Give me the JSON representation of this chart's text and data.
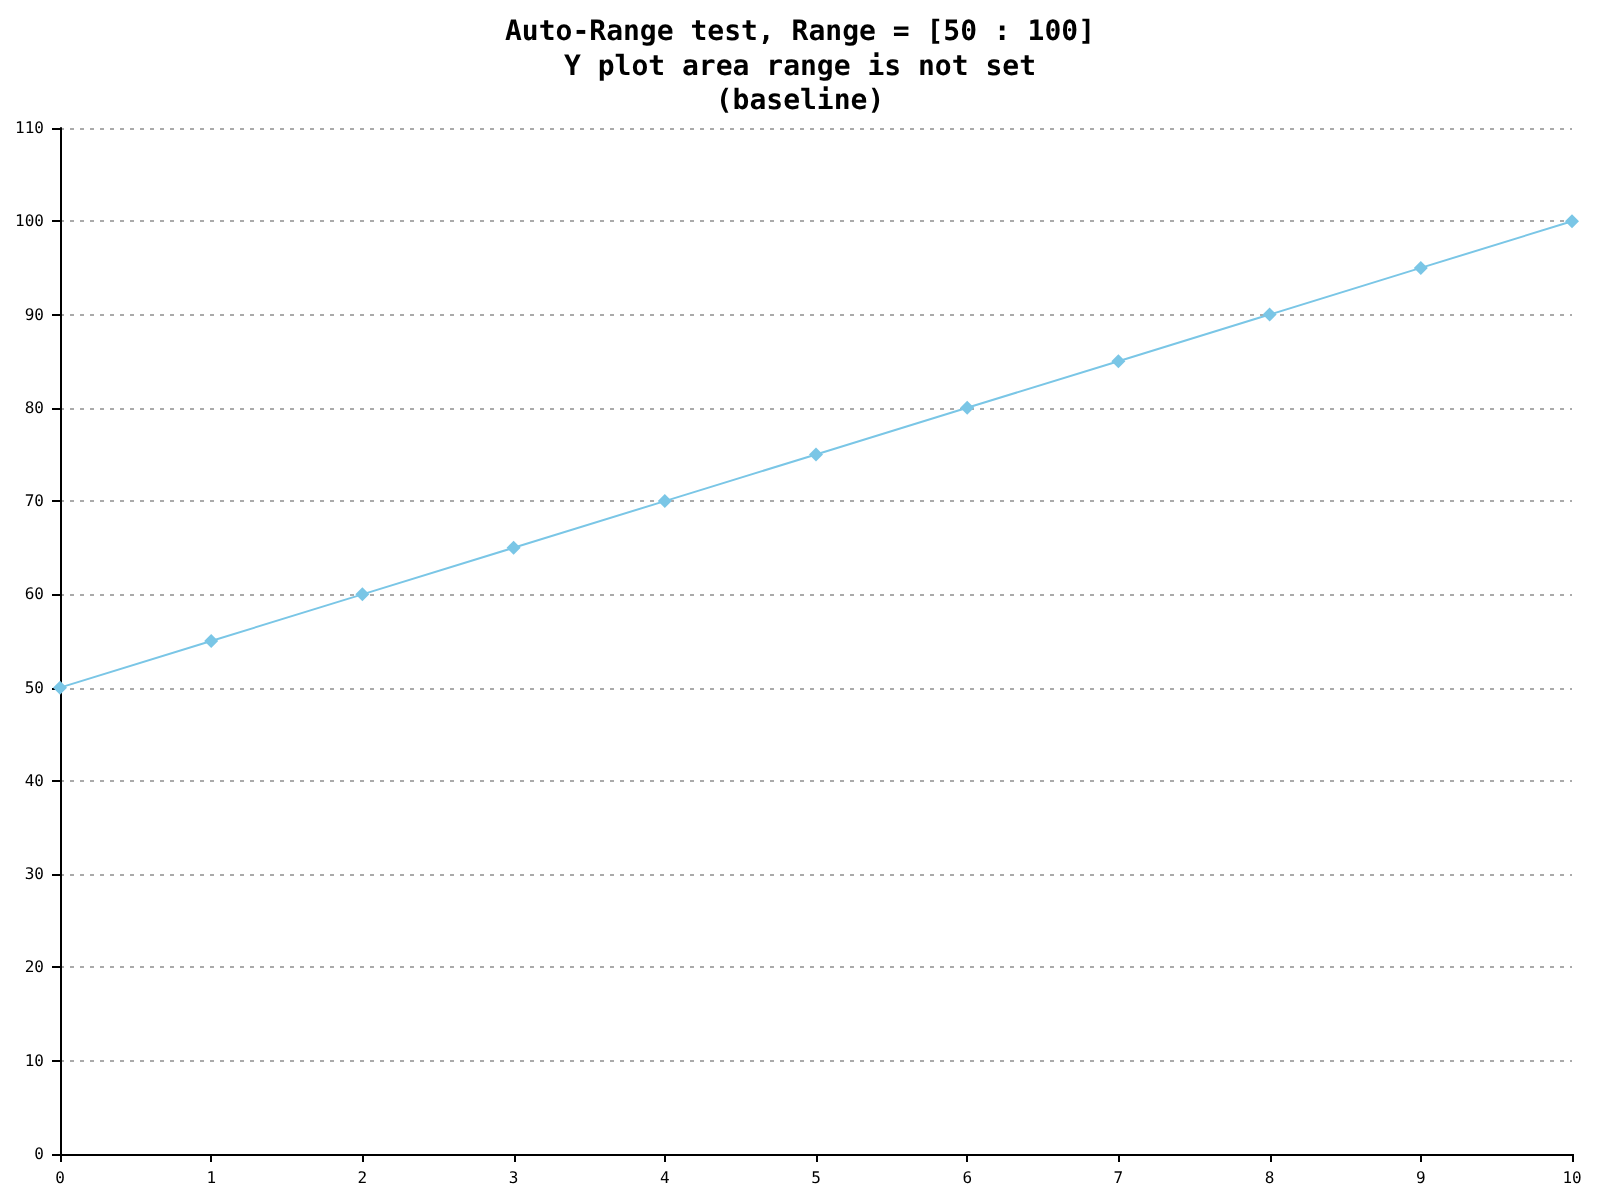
{
  "chart_data": {
    "type": "line",
    "title": "Auto-Range test, Range = [50 : 100]",
    "subtitle": "Y plot area range is not set\n(baseline)",
    "x": [
      0,
      1,
      2,
      3,
      4,
      5,
      6,
      7,
      8,
      9,
      10
    ],
    "series": [
      {
        "color": "#7ac6e6",
        "values": [
          50,
          55,
          60,
          65,
          70,
          75,
          80,
          85,
          90,
          95,
          100
        ]
      }
    ],
    "xlim": [
      0,
      10
    ],
    "xticks": [
      0,
      1,
      2,
      3,
      4,
      5,
      6,
      7,
      8,
      9,
      10
    ],
    "ylim": [
      0,
      110
    ],
    "yticks": [
      0,
      10,
      20,
      30,
      40,
      50,
      60,
      70,
      80,
      90,
      100,
      110
    ],
    "grid": "y",
    "marker": "diamond",
    "line_style": "solid"
  }
}
